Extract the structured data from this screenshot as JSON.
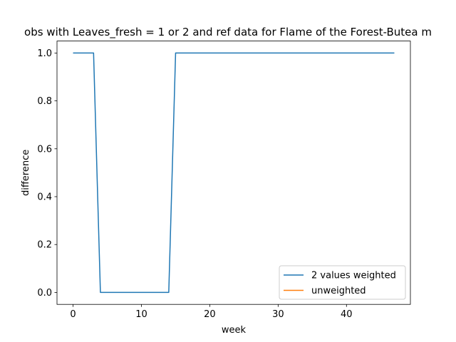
{
  "chart_data": {
    "type": "line",
    "title": "obs with Leaves_fresh = 1 or 2 and ref data for Flame of the Forest-Butea m",
    "xlabel": "week",
    "ylabel": "difference",
    "xlim": [
      -2.35,
      49.35
    ],
    "ylim": [
      -0.05,
      1.05
    ],
    "xticks": [
      0,
      10,
      20,
      30,
      40
    ],
    "yticks": [
      0.0,
      0.2,
      0.4,
      0.6,
      0.8,
      1.0
    ],
    "xtick_labels": [
      "0",
      "10",
      "20",
      "30",
      "40"
    ],
    "ytick_labels": [
      "0.0",
      "0.2",
      "0.4",
      "0.6",
      "0.8",
      "1.0"
    ],
    "grid": false,
    "legend_position": "lower-right",
    "series": [
      {
        "name": "2 values weighted",
        "color": "#1f77b4",
        "x": [
          0,
          1,
          2,
          3,
          4,
          5,
          6,
          7,
          8,
          9,
          10,
          11,
          12,
          13,
          14,
          15,
          16,
          17,
          18,
          19,
          20,
          21,
          22,
          23,
          24,
          25,
          26,
          27,
          28,
          29,
          30,
          31,
          32,
          33,
          34,
          35,
          36,
          37,
          38,
          39,
          40,
          41,
          42,
          43,
          44,
          45,
          46,
          47
        ],
        "y": [
          1,
          1,
          1,
          1,
          0,
          0,
          0,
          0,
          0,
          0,
          0,
          0,
          0,
          0,
          0,
          1,
          1,
          1,
          1,
          1,
          1,
          1,
          1,
          1,
          1,
          1,
          1,
          1,
          1,
          1,
          1,
          1,
          1,
          1,
          1,
          1,
          1,
          1,
          1,
          1,
          1,
          1,
          1,
          1,
          1,
          1,
          1,
          1
        ]
      },
      {
        "name": "unweighted",
        "color": "#ff7f0e",
        "x": [],
        "y": []
      }
    ]
  }
}
